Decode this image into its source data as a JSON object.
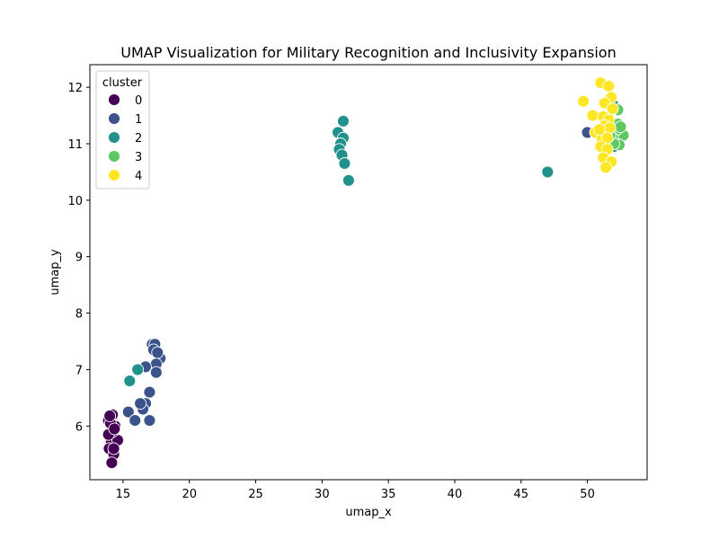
{
  "chart_data": {
    "type": "scatter",
    "title": "UMAP Visualization for Military Recognition and Inclusivity Expansion",
    "xlabel": "umap_x",
    "ylabel": "umap_y",
    "xlim": [
      12.5,
      54.5
    ],
    "ylim": [
      5.05,
      12.4
    ],
    "xticks": [
      15,
      20,
      25,
      30,
      35,
      40,
      45,
      50
    ],
    "yticks": [
      6,
      7,
      8,
      9,
      10,
      11,
      12
    ],
    "grid": false,
    "legend": {
      "title": "cluster",
      "placement": "top-left"
    },
    "series": [
      {
        "name": "0",
        "color": "#440154",
        "points": [
          [
            14.0,
            5.8
          ],
          [
            14.2,
            6.2
          ],
          [
            14.4,
            6.0
          ],
          [
            13.9,
            6.1
          ],
          [
            14.1,
            5.7
          ],
          [
            14.6,
            5.75
          ],
          [
            13.95,
            5.6
          ],
          [
            14.3,
            5.5
          ],
          [
            14.15,
            5.35
          ],
          [
            14.3,
            5.6
          ],
          [
            14.2,
            5.9
          ],
          [
            13.9,
            5.85
          ],
          [
            14.05,
            6.05
          ],
          [
            14.35,
            5.95
          ],
          [
            14.0,
            6.18
          ]
        ]
      },
      {
        "name": "1",
        "color": "#3b528b",
        "points": [
          [
            17.2,
            7.45
          ],
          [
            17.4,
            7.45
          ],
          [
            17.3,
            7.35
          ],
          [
            17.8,
            7.2
          ],
          [
            17.6,
            7.3
          ],
          [
            17.5,
            7.1
          ],
          [
            17.5,
            6.95
          ],
          [
            16.7,
            7.05
          ],
          [
            17.0,
            6.6
          ],
          [
            16.7,
            6.4
          ],
          [
            16.5,
            6.3
          ],
          [
            16.3,
            6.4
          ],
          [
            15.4,
            6.25
          ],
          [
            15.9,
            6.1
          ],
          [
            17.0,
            6.1
          ],
          [
            50.0,
            11.2
          ]
        ]
      },
      {
        "name": "2",
        "color": "#21918c",
        "points": [
          [
            16.1,
            7.0
          ],
          [
            15.5,
            6.8
          ],
          [
            31.6,
            11.4
          ],
          [
            31.2,
            11.2
          ],
          [
            31.6,
            11.1
          ],
          [
            31.4,
            11.0
          ],
          [
            31.3,
            10.9
          ],
          [
            31.5,
            10.8
          ],
          [
            31.7,
            10.65
          ],
          [
            32.0,
            10.35
          ],
          [
            47.0,
            10.5
          ],
          [
            51.9,
            11.7
          ],
          [
            52.1,
            11.05
          ],
          [
            52.0,
            10.95
          ],
          [
            51.8,
            11.2
          ]
        ]
      },
      {
        "name": "3",
        "color": "#5ec962",
        "points": [
          [
            52.3,
            11.6
          ],
          [
            52.3,
            11.35
          ],
          [
            52.7,
            11.15
          ],
          [
            52.4,
            10.98
          ],
          [
            52.2,
            11.25
          ],
          [
            51.9,
            11.1
          ],
          [
            51.6,
            11.45
          ],
          [
            52.0,
            11.0
          ],
          [
            52.5,
            11.3
          ],
          [
            51.7,
            11.15
          ]
        ]
      },
      {
        "name": "4",
        "color": "#fde725",
        "points": [
          [
            51.0,
            12.08
          ],
          [
            51.6,
            12.02
          ],
          [
            51.8,
            11.82
          ],
          [
            49.7,
            11.75
          ],
          [
            51.3,
            11.72
          ],
          [
            51.9,
            11.62
          ],
          [
            50.4,
            11.5
          ],
          [
            51.2,
            11.48
          ],
          [
            51.6,
            11.42
          ],
          [
            51.3,
            11.32
          ],
          [
            51.7,
            11.28
          ],
          [
            50.6,
            11.2
          ],
          [
            51.1,
            11.08
          ],
          [
            51.5,
            11.1
          ],
          [
            51.0,
            10.95
          ],
          [
            51.5,
            10.9
          ],
          [
            51.2,
            10.75
          ],
          [
            51.8,
            10.68
          ],
          [
            51.4,
            10.58
          ],
          [
            50.9,
            11.25
          ]
        ]
      }
    ]
  }
}
